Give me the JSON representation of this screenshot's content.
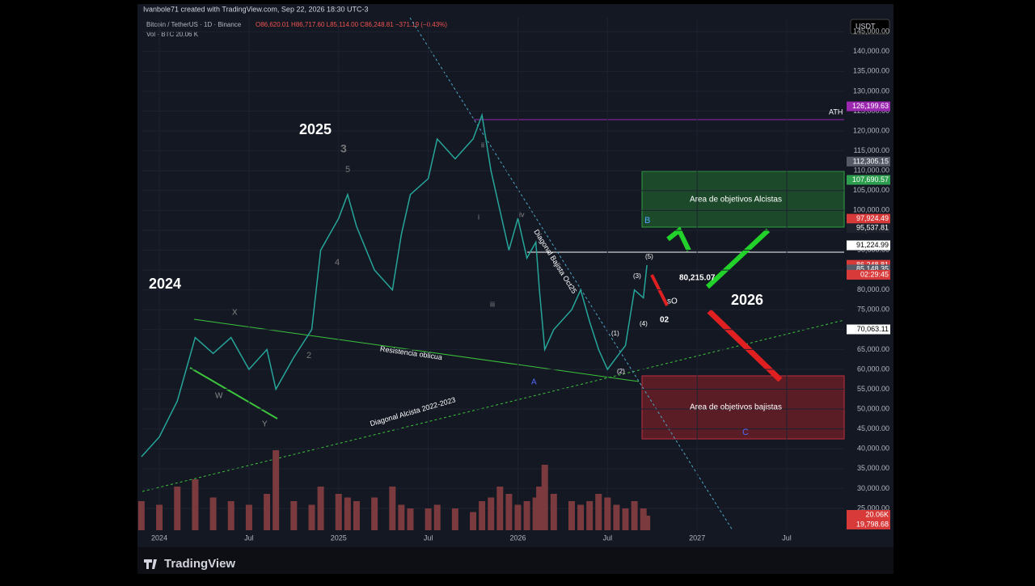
{
  "header": {
    "credit": "Ivanbole71 created with TradingView.com, Sep 22, 2026 18:30 UTC-3",
    "symbol": "Bitcoin / TetherUS · 1D · Binance",
    "ohlc": "O86,620.01 H86,717.60 L85,114.00 C86,248.81 −371.19 (−0.43%)",
    "volume": "Vol · BTC 20.06 K",
    "currency": "USDT"
  },
  "brand": "TradingView",
  "chart_data": {
    "type": "line",
    "color": "#26a69a",
    "x": [
      2023.9,
      2024.0,
      2024.1,
      2024.2,
      2024.3,
      2024.4,
      2024.5,
      2024.6,
      2024.65,
      2024.75,
      2024.85,
      2024.9,
      2025.0,
      2025.05,
      2025.1,
      2025.2,
      2025.3,
      2025.35,
      2025.4,
      2025.5,
      2025.55,
      2025.65,
      2025.75,
      2025.8,
      2025.85,
      2025.9,
      2025.95,
      2026.0,
      2026.05,
      2026.1,
      2026.12,
      2026.15,
      2026.2,
      2026.3,
      2026.35,
      2026.4,
      2026.45,
      2026.5,
      2026.55,
      2026.6,
      2026.65,
      2026.7,
      2026.72
    ],
    "values": [
      38000,
      43000,
      52000,
      68000,
      64000,
      68000,
      60000,
      65000,
      55000,
      63000,
      70000,
      90000,
      98000,
      104000,
      96000,
      85000,
      80000,
      94000,
      104000,
      108000,
      118000,
      113000,
      118000,
      124000,
      110000,
      100000,
      90000,
      98000,
      88000,
      92000,
      80000,
      65000,
      70000,
      75000,
      80000,
      72000,
      65000,
      60000,
      63000,
      66000,
      80000,
      78000,
      86248.81
    ],
    "volumes": [
      40000,
      35000,
      60000,
      70000,
      45000,
      40000,
      35000,
      50000,
      110000,
      40000,
      35000,
      60000,
      50000,
      45000,
      40000,
      45000,
      60000,
      35000,
      30000,
      30000,
      35000,
      30000,
      25000,
      40000,
      45000,
      60000,
      50000,
      35000,
      40000,
      45000,
      60000,
      90000,
      50000,
      40000,
      35000,
      40000,
      50000,
      45000,
      35000,
      30000,
      40000,
      30000,
      20060
    ],
    "volume_color": "#7a3a3e",
    "xlim": [
      2023.905,
      2027.82
    ],
    "xticks": [
      {
        "value": 2024,
        "label": "2024"
      },
      {
        "value": 2024.5,
        "label": "Jul"
      },
      {
        "value": 2025,
        "label": "2025"
      },
      {
        "value": 2025.5,
        "label": "Jul"
      },
      {
        "value": 2026,
        "label": "2026"
      },
      {
        "value": 2026.5,
        "label": "Jul"
      },
      {
        "value": 2027,
        "label": "2027"
      },
      {
        "value": 2027.5,
        "label": "Jul"
      }
    ],
    "ylim": [
      19500,
      148500
    ],
    "yticks": [
      {
        "value": 25000,
        "label": "25,000.00"
      },
      {
        "value": 30000,
        "label": "30,000.00"
      },
      {
        "value": 35000,
        "label": "35,000.00"
      },
      {
        "value": 40000,
        "label": "40,000.00"
      },
      {
        "value": 45000,
        "label": "45,000.00"
      },
      {
        "value": 50000,
        "label": "50,000.00"
      },
      {
        "value": 55000,
        "label": "55,000.00"
      },
      {
        "value": 60000,
        "label": "60,000.00"
      },
      {
        "value": 65000,
        "label": "65,000.00"
      },
      {
        "value": 70000,
        "label": "70,000.00"
      },
      {
        "value": 75000,
        "label": "75,000.00"
      },
      {
        "value": 80000,
        "label": "80,000.00"
      },
      {
        "value": 85000,
        "label": "85,000.00"
      },
      {
        "value": 90000,
        "label": "90,000.00"
      },
      {
        "value": 95000,
        "label": "95,000.00"
      },
      {
        "value": 100000,
        "label": "100,000.00"
      },
      {
        "value": 105000,
        "label": "105,000.00"
      },
      {
        "value": 110000,
        "label": "110,000.00"
      },
      {
        "value": 115000,
        "label": "115,000.00"
      },
      {
        "value": 120000,
        "label": "120,000.00"
      },
      {
        "value": 125000,
        "label": "125,000.00"
      },
      {
        "value": 130000,
        "label": "130,000.00"
      },
      {
        "value": 135000,
        "label": "135,000.00"
      },
      {
        "value": 140000,
        "label": "140,000.00"
      },
      {
        "value": 145000,
        "label": "145,000.00"
      }
    ],
    "price_labels": [
      {
        "value": 126199.63,
        "label": "126,199.63",
        "color": "#9c27b0"
      },
      {
        "value": 112305.15,
        "label": "112,305.15",
        "color": "#555a66"
      },
      {
        "value": 107690.57,
        "label": "107,690.57",
        "color": "#2e9e4f"
      },
      {
        "value": 97924.49,
        "label": "97,924.49",
        "color": "#d83a3a"
      },
      {
        "value": 95537.81,
        "label": "95,537.81",
        "color": "#1e222d"
      },
      {
        "value": 91224.99,
        "label": "91,224.99",
        "color": "#ffffff"
      },
      {
        "value": 86306.77,
        "label": "86,306.77",
        "color": "#d83a3a"
      },
      {
        "value": 86248.81,
        "label": "86,248.81",
        "color": "#d83a3a"
      },
      {
        "value": 85148.35,
        "label": "85,148.35",
        "color": "#555a66"
      },
      {
        "value": 70063.11,
        "label": "70,063.11",
        "color": "#ffffff"
      }
    ],
    "countdown": "02:29:45",
    "volume_labels": [
      "20.06K",
      "19,798.68"
    ],
    "annotations": [
      "2024",
      "2025",
      "2026",
      "ATH",
      "Resistencia oblicua",
      "Diagonal Alcista 2022-2023",
      "Diagonal Bajista Oct25",
      "Area de objetivos Alcistas",
      "Area de objetivos bajistas",
      "B",
      "C",
      "80,215.07",
      "sO",
      "02",
      "3",
      "5",
      "4",
      "2",
      "(3)",
      "(4)",
      "(5)",
      "(1)",
      "(2)",
      "X",
      "W",
      "Y",
      "i",
      "ii",
      "iii",
      "iv",
      "A"
    ]
  }
}
